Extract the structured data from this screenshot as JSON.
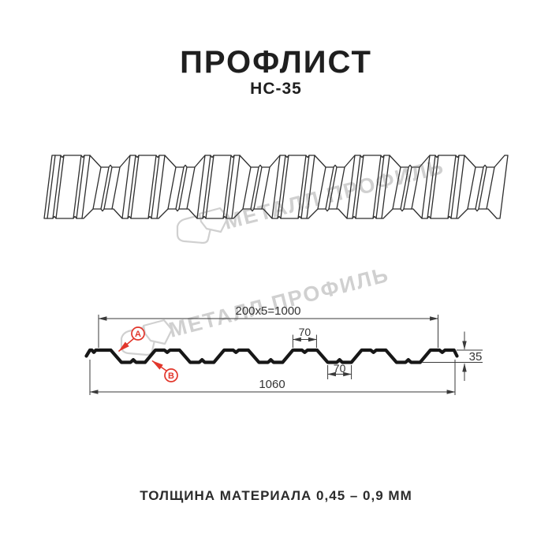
{
  "header": {
    "title": "ПРОФЛИСТ",
    "subtitle": "НС-35"
  },
  "watermark": {
    "text": "МЕТАЛЛ ПРОФИЛЬ",
    "color": "#d0d0d0"
  },
  "cross_section": {
    "dim_top": "200x5=1000",
    "dim_rib_top": "70",
    "dim_rib_bottom": "70",
    "dim_height": "35",
    "dim_overall": "1060",
    "label_a": "A",
    "label_b": "B",
    "accent_color": "#e2362b"
  },
  "footer": {
    "note": "ТОЛЩИНА МАТЕРИАЛА 0,45 – 0,9 ММ"
  }
}
